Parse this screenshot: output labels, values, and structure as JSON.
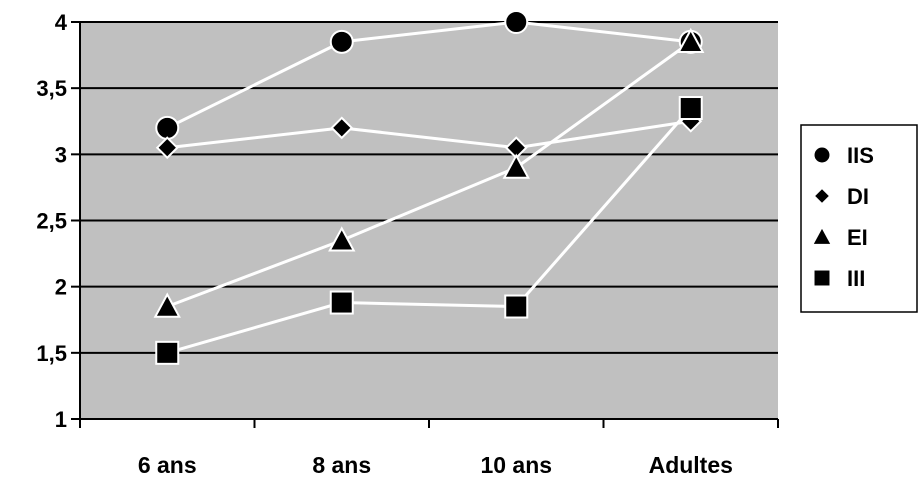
{
  "chart_data": {
    "type": "line",
    "title": "",
    "xlabel": "",
    "ylabel": "",
    "categories": [
      "6 ans",
      "8 ans",
      "10 ans",
      "Adultes"
    ],
    "ylim": [
      1,
      4
    ],
    "yticks": [
      1,
      1.5,
      2,
      2.5,
      3,
      3.5,
      4
    ],
    "ytick_labels": [
      "1",
      "1,5",
      "2",
      "2,5",
      "3",
      "3,5",
      "4"
    ],
    "grid": true,
    "legend_position": "right",
    "plot_background": "#c0c0c0",
    "line_color": "#ffffff",
    "marker_color": "#000000",
    "series": [
      {
        "name": "IIS",
        "marker": "circle",
        "values": [
          3.2,
          3.85,
          4.0,
          3.85
        ]
      },
      {
        "name": "DI",
        "marker": "diamond",
        "values": [
          3.05,
          3.2,
          3.05,
          3.25
        ]
      },
      {
        "name": "EI",
        "marker": "triangle",
        "values": [
          1.85,
          2.35,
          2.9,
          3.85
        ]
      },
      {
        "name": "III",
        "marker": "square",
        "values": [
          1.5,
          1.88,
          1.85,
          3.35
        ]
      }
    ]
  }
}
